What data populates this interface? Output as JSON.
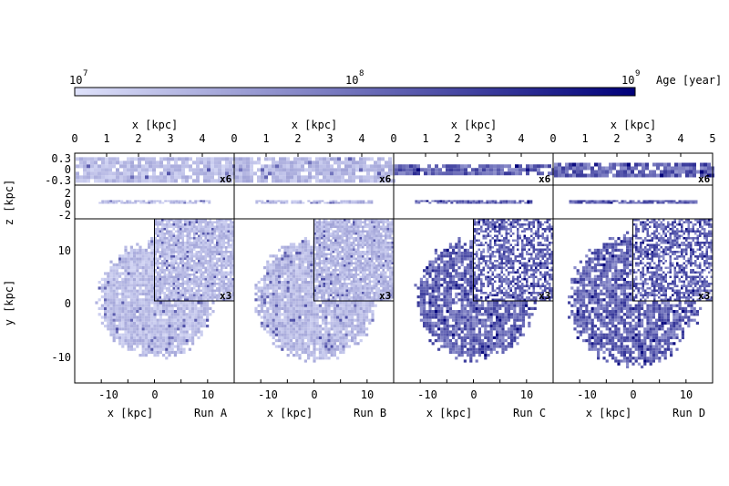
{
  "chart_data": {
    "type": "heatmap",
    "colorbar": {
      "label": "Age [year]",
      "scale": "log",
      "range": [
        10000000,
        1000000000
      ],
      "ticks": [
        {
          "base": "10",
          "exp": "7"
        },
        {
          "base": "10",
          "exp": "8"
        },
        {
          "base": "10",
          "exp": "9"
        }
      ],
      "color_low": "#dfe2fb",
      "color_high": "#00007a"
    },
    "top_axis": {
      "label": "x [kpc]",
      "range": [
        0,
        5
      ],
      "ticks_runs_abc": [
        "0",
        "1",
        "2",
        "3",
        "4"
      ],
      "ticks_run_d": [
        "0",
        "1",
        "2",
        "3",
        "4",
        "5"
      ]
    },
    "edge_on_zoom_panel": {
      "ylim": [
        -0.4,
        0.4
      ],
      "ticks": [
        "0.3",
        "0",
        "-0.3"
      ],
      "zoom_label": "x6"
    },
    "edge_on_panel": {
      "ylim": [
        -3,
        3
      ],
      "ticks": [
        "2",
        "0",
        "-2"
      ]
    },
    "z_label": "z [kpc]",
    "face_on_panel": {
      "xlim": [
        -15,
        15
      ],
      "ylim": [
        -15,
        15
      ],
      "xticks": [
        "-10",
        "0",
        "10"
      ],
      "yticks": [
        "10",
        "0",
        "-10"
      ],
      "xlabel": "x [kpc]",
      "ylabel": "y [kpc]",
      "zoom_label": "x3"
    },
    "runs": [
      {
        "name": "Run A",
        "disk_radius_kpc": 10.5,
        "thickness_kpc": 0.3,
        "mean_age_fraction": 0.16,
        "spread": 0.1,
        "ring_structure": false,
        "zoom_label_edge": "x6"
      },
      {
        "name": "Run B",
        "disk_radius_kpc": 11.0,
        "thickness_kpc": 0.3,
        "mean_age_fraction": 0.18,
        "spread": 0.1,
        "ring_structure": false,
        "zoom_label_edge": "x6"
      },
      {
        "name": "Run C",
        "disk_radius_kpc": 11.0,
        "thickness_kpc": 0.12,
        "mean_age_fraction": 0.55,
        "spread": 0.2,
        "ring_structure": true,
        "zoom_label_edge": "x6"
      },
      {
        "name": "Run D",
        "disk_radius_kpc": 12.0,
        "thickness_kpc": 0.16,
        "mean_age_fraction": 0.55,
        "spread": 0.22,
        "ring_structure": true,
        "zoom_label_edge": "x6"
      }
    ]
  }
}
